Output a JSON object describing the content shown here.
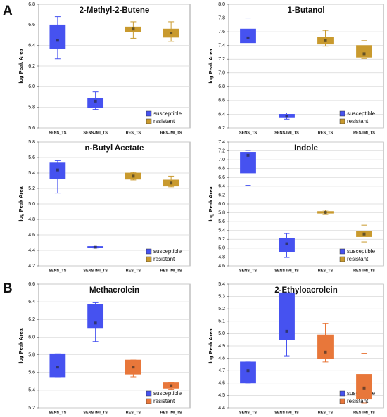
{
  "panel_labels": [
    "A",
    "B"
  ],
  "chart_data": [
    {
      "type": "box",
      "title": "2-Methyl-2-Butene",
      "y_label": "log Peak Area",
      "categories": [
        "SENS_TS",
        "SENS-IMI_TS",
        "RES_TS",
        "RES-IMI_TS"
      ],
      "ylim": [
        5.6,
        6.8
      ],
      "yticks": [
        5.6,
        5.8,
        {
          "value": 6,
          "label": "6.0"
        },
        6.2,
        6.4,
        6.6,
        6.8
      ],
      "grid": true,
      "legend": "lower right",
      "series": [
        {
          "name": "susceptible",
          "color": "#4652f0",
          "min": [
            6.27,
            5.78,
            null,
            null
          ],
          "q1": [
            6.37,
            5.8,
            null,
            null
          ],
          "q3": [
            6.6,
            5.89,
            null,
            null
          ],
          "max": [
            6.68,
            5.95,
            null,
            null
          ],
          "mean": [
            6.45,
            5.86,
            null,
            null
          ]
        },
        {
          "name": "resistant",
          "color": "#c99a2e",
          "min": [
            null,
            null,
            6.47,
            6.44
          ],
          "q1": [
            null,
            null,
            6.53,
            6.48
          ],
          "q3": [
            null,
            null,
            6.58,
            6.56
          ],
          "max": [
            null,
            null,
            6.63,
            6.63
          ],
          "mean": [
            null,
            null,
            6.56,
            6.52
          ]
        }
      ]
    },
    {
      "type": "box",
      "title": "1-Butanol",
      "y_label": "log Peak Area",
      "categories": [
        "SENS_TS",
        "SENS-IMI_TS",
        "RES_TS",
        "RES-IMI_TS"
      ],
      "ylim": [
        6.2,
        8.0
      ],
      "yticks": [
        6.2,
        6.4,
        6.6,
        6.8,
        {
          "value": 7,
          "label": "7.0"
        },
        7.2,
        7.4,
        7.6,
        7.8,
        {
          "value": 8,
          "label": "8.0"
        }
      ],
      "grid": true,
      "legend": "lower right",
      "series": [
        {
          "name": "susceptible",
          "color": "#4652f0",
          "min": [
            7.32,
            6.33,
            null,
            null
          ],
          "q1": [
            7.44,
            6.35,
            null,
            null
          ],
          "q3": [
            7.64,
            6.4,
            null,
            null
          ],
          "max": [
            7.8,
            6.42,
            null,
            null
          ],
          "mean": [
            7.51,
            6.37,
            null,
            null
          ]
        },
        {
          "name": "resistant",
          "color": "#c99a2e",
          "min": [
            null,
            null,
            7.39,
            7.21
          ],
          "q1": [
            null,
            null,
            7.42,
            7.23
          ],
          "q3": [
            null,
            null,
            7.52,
            7.4
          ],
          "max": [
            null,
            null,
            7.62,
            7.47
          ],
          "mean": [
            null,
            null,
            7.47,
            7.28
          ]
        }
      ]
    },
    {
      "type": "box",
      "title": "n-Butyl Acetate",
      "y_label": "log Peak Area",
      "categories": [
        "SENS_TS",
        "SENS-IMI_TS",
        "RES_TS",
        "RES-IMI_TS"
      ],
      "ylim": [
        4.2,
        5.8
      ],
      "yticks": [
        4.2,
        4.4,
        4.6,
        4.8,
        {
          "value": 5,
          "label": "5.0"
        },
        5.2,
        5.4,
        5.6,
        5.8
      ],
      "grid": true,
      "legend": "lower right",
      "series": [
        {
          "name": "susceptible",
          "color": "#4652f0",
          "min": [
            5.14,
            4.43,
            null,
            null
          ],
          "q1": [
            5.33,
            4.44,
            null,
            null
          ],
          "q3": [
            5.53,
            4.45,
            null,
            null
          ],
          "max": [
            5.56,
            4.45,
            null,
            null
          ],
          "mean": [
            5.44,
            4.44,
            null,
            null
          ]
        },
        {
          "name": "resistant",
          "color": "#c99a2e",
          "min": [
            null,
            null,
            5.31,
            5.22
          ],
          "q1": [
            null,
            null,
            5.32,
            5.23
          ],
          "q3": [
            null,
            null,
            5.4,
            5.31
          ],
          "max": [
            null,
            null,
            5.41,
            5.36
          ],
          "mean": [
            null,
            null,
            5.36,
            5.27
          ]
        }
      ]
    },
    {
      "type": "box",
      "title": "Indole",
      "y_label": "log Peak Area",
      "categories": [
        "SENS_TS",
        "SENS-IMI_TS",
        "RES_TS",
        "RES-IMI_TS"
      ],
      "ylim": [
        4.6,
        7.4
      ],
      "yticks": [
        4.6,
        4.8,
        {
          "value": 5,
          "label": "5.0"
        },
        5.2,
        5.4,
        5.6,
        5.8,
        {
          "value": 6,
          "label": "6.0"
        },
        6.2,
        6.4,
        6.6,
        6.8,
        {
          "value": 7,
          "label": "7.0"
        },
        7.2,
        7.4
      ],
      "grid": true,
      "legend": "lower right",
      "series": [
        {
          "name": "susceptible",
          "color": "#4652f0",
          "min": [
            6.42,
            4.79,
            null,
            null
          ],
          "q1": [
            6.7,
            4.92,
            null,
            null
          ],
          "q3": [
            7.17,
            5.23,
            null,
            null
          ],
          "max": [
            7.21,
            5.33,
            null,
            null
          ],
          "mean": [
            7.1,
            5.1,
            null,
            null
          ]
        },
        {
          "name": "resistant",
          "color": "#c99a2e",
          "min": [
            null,
            null,
            5.76,
            5.14
          ],
          "q1": [
            null,
            null,
            5.79,
            5.26
          ],
          "q3": [
            null,
            null,
            5.83,
            5.38
          ],
          "max": [
            null,
            null,
            5.86,
            5.52
          ],
          "mean": [
            null,
            null,
            5.81,
            5.32
          ]
        }
      ]
    },
    {
      "type": "box",
      "title": "Methacrolein",
      "y_label": "log Peak Area",
      "categories": [
        "SENS_TS",
        "SENS-IMI_TS",
        "RES_TS",
        "RES-IMI_TS"
      ],
      "ylim": [
        5.2,
        6.6
      ],
      "yticks": [
        5.2,
        5.4,
        5.6,
        5.8,
        {
          "value": 6,
          "label": "6.0"
        },
        6.2,
        6.4,
        6.6
      ],
      "grid": true,
      "legend": "lower right",
      "series": [
        {
          "name": "susceptible",
          "color": "#4652f0",
          "min": [
            5.55,
            5.95,
            null,
            null
          ],
          "q1": [
            5.55,
            6.1,
            null,
            null
          ],
          "q3": [
            5.81,
            6.37,
            null,
            null
          ],
          "max": [
            5.81,
            6.39,
            null,
            null
          ],
          "mean": [
            5.66,
            6.16,
            null,
            null
          ]
        },
        {
          "name": "resistant",
          "color": "#e8773a",
          "min": [
            null,
            null,
            5.55,
            5.41
          ],
          "q1": [
            null,
            null,
            5.58,
            5.42
          ],
          "q3": [
            null,
            null,
            5.74,
            5.49
          ],
          "max": [
            null,
            null,
            5.74,
            5.49
          ],
          "mean": [
            null,
            null,
            5.66,
            5.45
          ]
        }
      ]
    },
    {
      "type": "box",
      "title": "2-Ethyloacrolein",
      "y_label": "log Peak Area",
      "categories": [
        "SENS_TS",
        "SENS-IMI_TS",
        "RES_TS",
        "RES-IMI_TS"
      ],
      "ylim": [
        4.4,
        5.4
      ],
      "yticks": [
        4.4,
        4.5,
        4.6,
        4.7,
        4.8,
        4.9,
        {
          "value": 5,
          "label": "5.0"
        },
        5.1,
        5.2,
        5.3,
        5.4
      ],
      "grid": true,
      "legend": "lower right",
      "series": [
        {
          "name": "susceptible",
          "color": "#4652f0",
          "min": [
            4.6,
            4.82,
            null,
            null
          ],
          "q1": [
            4.6,
            4.95,
            null,
            null
          ],
          "q3": [
            4.77,
            5.33,
            null,
            null
          ],
          "max": [
            4.77,
            5.33,
            null,
            null
          ],
          "mean": [
            4.7,
            5.02,
            null,
            null
          ]
        },
        {
          "name": "resistant",
          "color": "#e8773a",
          "min": [
            null,
            null,
            4.77,
            4.44
          ],
          "q1": [
            null,
            null,
            4.8,
            4.47
          ],
          "q3": [
            null,
            null,
            4.99,
            4.67
          ],
          "max": [
            null,
            null,
            5.08,
            4.84
          ],
          "mean": [
            null,
            null,
            4.85,
            4.56
          ]
        }
      ]
    }
  ]
}
